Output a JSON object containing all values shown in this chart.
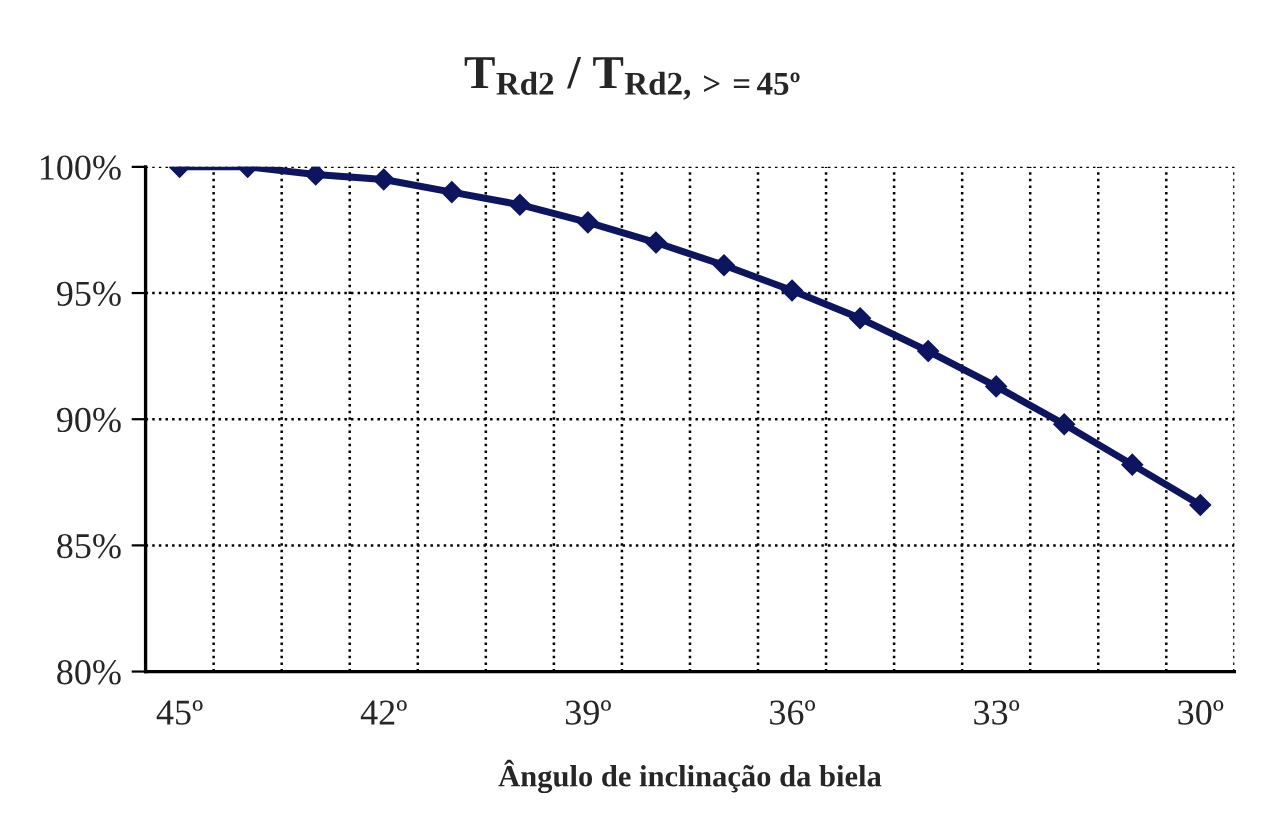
{
  "chart_data": {
    "type": "line",
    "title": "T$_{Rd2}$ / T$_{Rd2,>=45º}$",
    "xlabel": "Ângulo de inclinação da biela",
    "categories": [
      "45º",
      null,
      null,
      "42º",
      null,
      null,
      "39º",
      null,
      null,
      "36º",
      null,
      null,
      "33º",
      null,
      null,
      "30º"
    ],
    "series": [
      {
        "color": "#0d1560",
        "values": [
          100,
          100,
          99.7,
          99.5,
          99.0,
          98.5,
          97.8,
          97.0,
          96.1,
          95.1,
          94.0,
          92.7,
          91.3,
          89.8,
          88.2,
          86.6
        ]
      }
    ],
    "ylim": [
      80,
      100
    ],
    "yticks": [
      {
        "value": 80,
        "label": "80%"
      },
      {
        "value": 85,
        "label": "85%"
      },
      {
        "value": 90,
        "label": "90%"
      },
      {
        "value": 95,
        "label": "95%"
      },
      {
        "value": 100,
        "label": "100%"
      }
    ],
    "grid": true,
    "marker": "diamond",
    "line_style": "solid"
  }
}
